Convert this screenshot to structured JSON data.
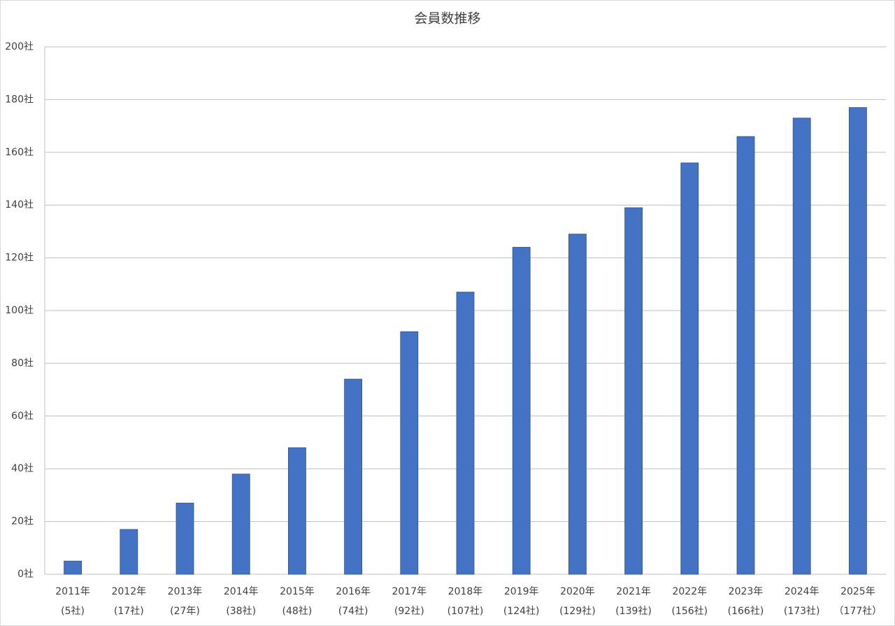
{
  "chart_data": {
    "type": "bar",
    "title": "会員数推移",
    "categories": [
      [
        "2011年",
        "(5社)"
      ],
      [
        "2012年",
        "(17社)"
      ],
      [
        "2013年",
        "(27年)"
      ],
      [
        "2014年",
        "(38社)"
      ],
      [
        "2015年",
        "(48社)"
      ],
      [
        "2016年",
        "(74社)"
      ],
      [
        "2017年",
        "(92社)"
      ],
      [
        "2018年",
        "(107社)"
      ],
      [
        "2019年",
        "(124社)"
      ],
      [
        "2020年",
        "(129社)"
      ],
      [
        "2021年",
        "(139社)"
      ],
      [
        "2022年",
        "(156社)"
      ],
      [
        "2023年",
        "(166社)"
      ],
      [
        "2024年",
        "(173社)"
      ],
      [
        "2025年",
        "（177社）"
      ]
    ],
    "values": [
      5,
      17,
      27,
      38,
      48,
      74,
      92,
      107,
      124,
      129,
      139,
      156,
      166,
      173,
      177
    ],
    "color": "#4472c4",
    "ylim": [
      0,
      200
    ],
    "yticks": [
      {
        "value": 0,
        "label": "0社"
      },
      {
        "value": 20,
        "label": "20社"
      },
      {
        "value": 40,
        "label": "40社"
      },
      {
        "value": 60,
        "label": "60社"
      },
      {
        "value": 80,
        "label": "80社"
      },
      {
        "value": 100,
        "label": "100社"
      },
      {
        "value": 120,
        "label": "120社"
      },
      {
        "value": 140,
        "label": "140社"
      },
      {
        "value": 160,
        "label": "160社"
      },
      {
        "value": 180,
        "label": "180社"
      },
      {
        "value": 200,
        "label": "200社"
      }
    ],
    "grid": true
  }
}
